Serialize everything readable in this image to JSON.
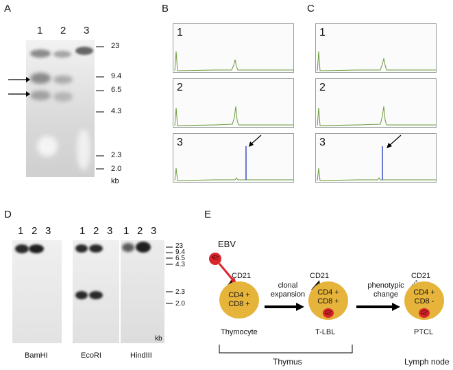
{
  "panels": {
    "A": "A",
    "B": "B",
    "C": "C",
    "D": "D",
    "E": "E"
  },
  "panel_a": {
    "lanes": [
      "1",
      "2",
      "3"
    ],
    "markers": [
      "23",
      "9.4",
      "6.5",
      "4.3",
      "2.3",
      "2.0"
    ],
    "unit": "kb"
  },
  "panel_b": {
    "traces": [
      "1",
      "2",
      "3"
    ]
  },
  "panel_c": {
    "traces": [
      "1",
      "2",
      "3"
    ]
  },
  "panel_d": {
    "lanes": [
      "1",
      "2",
      "3"
    ],
    "enzymes": [
      "BamHI",
      "EcoRI",
      "HindIII"
    ],
    "markers": [
      "23",
      "9.4",
      "6.5",
      "4.3",
      "2.3",
      "2.0"
    ],
    "unit": "kb"
  },
  "panel_e": {
    "virus": "EBV",
    "receptor": "CD21",
    "cell1": {
      "line1": "CD4 +",
      "line2": "CD8 +",
      "name": "Thymocyte"
    },
    "cell2": {
      "line1": "CD4 +",
      "line2": "CD8 +",
      "name": "T-LBL"
    },
    "cell3": {
      "line1": "CD4 +",
      "line2": "CD8 -",
      "name": "PTCL"
    },
    "arrow1": {
      "line1": "clonal",
      "line2": "expansion"
    },
    "arrow2": {
      "line1": "phenotypic",
      "line2": "change"
    },
    "location1": "Thymus",
    "location2": "Lymph node",
    "colors": {
      "cell": "#e6b43a",
      "virus": "#d9262c",
      "arrow_virus": "#d9262c"
    }
  }
}
